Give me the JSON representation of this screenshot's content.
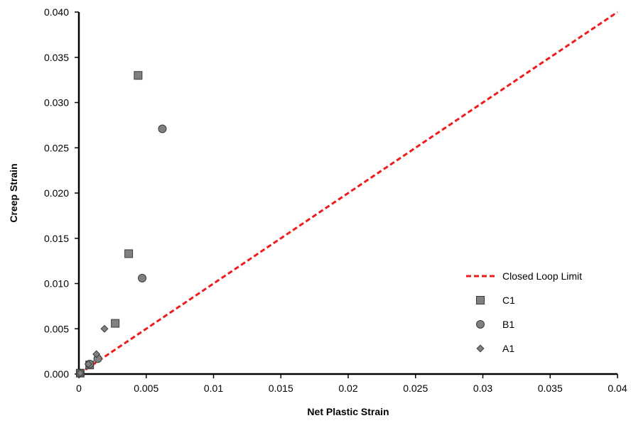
{
  "chart_data": {
    "type": "scatter",
    "xlabel": "Net Plastic Strain",
    "ylabel": "Creep Strain",
    "xlim": [
      0,
      0.04
    ],
    "ylim": [
      0,
      0.04
    ],
    "x_ticks": [
      "0",
      "0.005",
      "0.01",
      "0.015",
      "0.02",
      "0.025",
      "0.03",
      "0.035",
      "0.04"
    ],
    "y_ticks": [
      "0.000",
      "0.005",
      "0.010",
      "0.015",
      "0.020",
      "0.025",
      "0.030",
      "0.035",
      "0.040"
    ],
    "grid": false,
    "legend_position": "right",
    "series": [
      {
        "name": "Closed Loop Limit",
        "kind": "line",
        "style": "dashed",
        "color": "#ee1c1c",
        "points": [
          [
            0,
            0
          ],
          [
            0.04,
            0.04
          ]
        ]
      },
      {
        "name": "C1",
        "kind": "marker",
        "marker": "square",
        "color": "#808080",
        "points": [
          [
            0.0001,
            0.0001
          ],
          [
            0.0008,
            0.001
          ],
          [
            0.0027,
            0.0056
          ],
          [
            0.0037,
            0.0133
          ],
          [
            0.0044,
            0.033
          ]
        ]
      },
      {
        "name": "B1",
        "kind": "marker",
        "marker": "circle",
        "color": "#808080",
        "points": [
          [
            0.0001,
            0.0001
          ],
          [
            0.0008,
            0.0011
          ],
          [
            0.0014,
            0.0017
          ],
          [
            0.0047,
            0.0106
          ],
          [
            0.0062,
            0.0271
          ]
        ]
      },
      {
        "name": "A1",
        "kind": "marker",
        "marker": "diamond",
        "color": "#808080",
        "points": [
          [
            0.0001,
            0.0001
          ],
          [
            0.0007,
            0.0011
          ],
          [
            0.0013,
            0.0022
          ],
          [
            0.0019,
            0.005
          ]
        ]
      }
    ]
  }
}
